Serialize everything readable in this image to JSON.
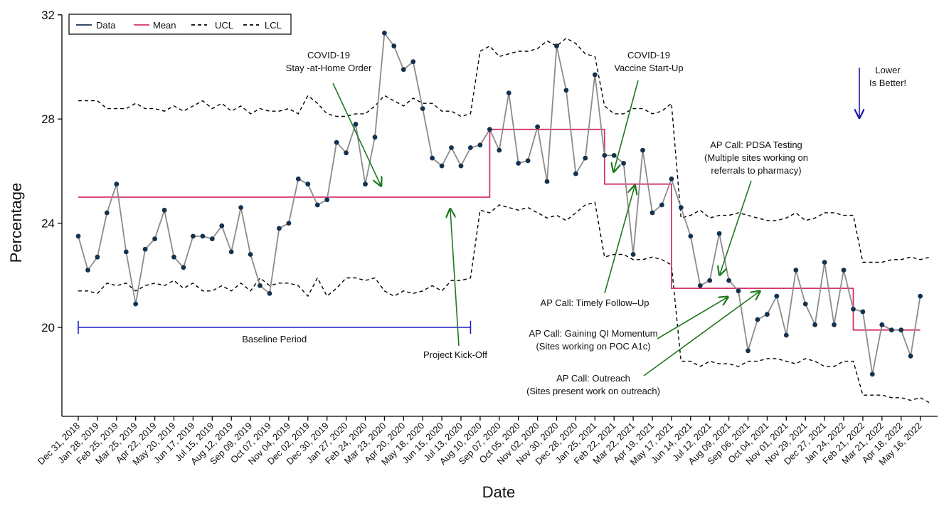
{
  "chart_data": {
    "type": "line",
    "xlabel": "Date",
    "ylabel": "Percentage",
    "ylim": [
      16,
      32
    ],
    "yticks": [
      20,
      24,
      28,
      32
    ],
    "x_tick_labels": [
      "Dec 31, 2018",
      "Jan 28, 2019",
      "Feb 25, 2019",
      "Mar 25, 2019",
      "Apr 22, 2019",
      "May 20, 2019",
      "Jun 17, 2019",
      "Jul 15, 2019",
      "Aug 12, 2019",
      "Sep 09, 2019",
      "Oct 07, 2019",
      "Nov 04, 2019",
      "Dec 02, 2019",
      "Dec 30, 2019",
      "Jan 27, 2020",
      "Feb 24, 2020",
      "Mar 23, 2020",
      "Apr 20, 2020",
      "May 18, 2020",
      "Jun 15, 2020",
      "Jul 13, 2020",
      "Aug 10, 2020",
      "Sep 07, 2020",
      "Oct 05, 2020",
      "Nov 02, 2020",
      "Nov 30, 2020",
      "Dec 28, 2020",
      "Jan 25, 2021",
      "Feb 22, 2021",
      "Mar 22, 2021",
      "Apr 19, 2021",
      "May 17, 2021",
      "Jun 14, 2021",
      "Jul 12, 2021",
      "Aug 09, 2021",
      "Sep 06, 2021",
      "Oct 04, 2021",
      "Nov 01, 2021",
      "Nov 29, 2021",
      "Dec 27, 2021",
      "Jan 24, 2022",
      "Feb 21, 2022",
      "Mar 21, 2022",
      "Apr 18, 2022",
      "May 16, 2022"
    ],
    "legend": {
      "position": "top-left",
      "items": [
        {
          "label": "Data",
          "color": "#14324f",
          "style": "solid"
        },
        {
          "label": "Mean",
          "color": "#d6336c",
          "style": "solid"
        },
        {
          "label": "UCL",
          "color": "#000000",
          "style": "dashed"
        },
        {
          "label": "LCL",
          "color": "#000000",
          "style": "dashed"
        }
      ]
    },
    "series": [
      {
        "name": "Data",
        "color": "#14324f",
        "line_color": "#8c8c8c",
        "values": [
          23.5,
          22.2,
          22.7,
          24.4,
          25.5,
          22.9,
          20.9,
          23.0,
          23.4,
          24.5,
          22.7,
          22.3,
          23.5,
          23.5,
          23.4,
          23.9,
          22.9,
          24.6,
          22.8,
          21.6,
          21.3,
          23.8,
          24.0,
          25.7,
          25.5,
          24.7,
          24.9,
          27.1,
          26.7,
          27.8,
          25.5,
          27.3,
          31.3,
          30.8,
          29.9,
          30.2,
          28.4,
          26.5,
          26.2,
          26.9,
          26.2,
          26.9,
          27.0,
          27.6,
          26.8,
          29.0,
          26.3,
          26.4,
          27.7,
          25.6,
          30.8,
          29.1,
          25.9,
          26.5,
          29.7,
          26.6,
          26.6,
          26.3,
          22.8,
          26.8,
          24.4,
          24.7,
          25.7,
          24.6,
          23.5,
          21.6,
          21.8,
          23.6,
          21.8,
          21.4,
          19.1,
          20.3,
          20.5,
          21.2,
          19.7,
          22.2,
          20.9,
          20.1,
          22.5,
          20.1,
          22.2,
          20.7,
          20.6,
          18.2,
          20.1,
          19.9,
          19.9,
          18.9,
          21.2
        ]
      },
      {
        "name": "Mean",
        "color": "#d6336c",
        "style": "step",
        "segments": [
          {
            "start": 0,
            "end": 43,
            "value": 25.0
          },
          {
            "start": 43,
            "end": 55,
            "value": 27.6
          },
          {
            "start": 55,
            "end": 62,
            "value": 25.5
          },
          {
            "start": 62,
            "end": 81,
            "value": 21.5
          },
          {
            "start": 81,
            "end": 88,
            "value": 19.9
          }
        ]
      },
      {
        "name": "UCL",
        "color": "#000000",
        "style": "dashed",
        "values": [
          28.7,
          28.7,
          28.7,
          28.4,
          28.4,
          28.4,
          28.6,
          28.4,
          28.4,
          28.3,
          28.5,
          28.3,
          28.5,
          28.7,
          28.4,
          28.6,
          28.3,
          28.5,
          28.2,
          28.4,
          28.3,
          28.3,
          28.4,
          28.2,
          28.9,
          28.6,
          28.2,
          28.1,
          28.1,
          28.2,
          28.2,
          28.5,
          28.9,
          28.7,
          28.5,
          28.8,
          28.6,
          28.6,
          28.3,
          28.3,
          28.1,
          28.2,
          30.6,
          30.8,
          30.4,
          30.5,
          30.6,
          30.6,
          30.7,
          31.0,
          30.8,
          31.1,
          30.9,
          30.5,
          30.4,
          28.5,
          28.2,
          28.2,
          28.4,
          28.4,
          28.2,
          28.3,
          28.6,
          24.2,
          24.3,
          24.5,
          24.2,
          24.3,
          24.3,
          24.4,
          24.3,
          24.2,
          24.1,
          24.1,
          24.2,
          24.4,
          24.1,
          24.2,
          24.4,
          24.4,
          24.3,
          24.3,
          22.5,
          22.5,
          22.5,
          22.6,
          22.6,
          22.7,
          22.6,
          22.7
        ]
      },
      {
        "name": "LCL",
        "color": "#000000",
        "style": "dashed",
        "values": [
          21.4,
          21.4,
          21.3,
          21.7,
          21.6,
          21.7,
          21.4,
          21.6,
          21.7,
          21.6,
          21.8,
          21.5,
          21.7,
          21.4,
          21.4,
          21.6,
          21.4,
          21.7,
          21.4,
          21.9,
          21.6,
          21.7,
          21.7,
          21.6,
          21.2,
          21.9,
          21.2,
          21.5,
          21.9,
          21.9,
          21.8,
          21.9,
          21.4,
          21.2,
          21.4,
          21.3,
          21.4,
          21.6,
          21.4,
          21.8,
          21.8,
          21.9,
          24.5,
          24.4,
          24.7,
          24.6,
          24.5,
          24.6,
          24.4,
          24.2,
          24.3,
          24.1,
          24.4,
          24.7,
          24.8,
          22.7,
          22.8,
          22.8,
          22.6,
          22.6,
          22.7,
          22.6,
          22.4,
          18.7,
          18.7,
          18.5,
          18.7,
          18.6,
          18.6,
          18.5,
          18.7,
          18.7,
          18.8,
          18.8,
          18.7,
          18.6,
          18.8,
          18.7,
          18.5,
          18.5,
          18.7,
          18.7,
          17.4,
          17.4,
          17.4,
          17.3,
          17.3,
          17.2,
          17.3,
          17.1
        ]
      }
    ],
    "baseline": {
      "label": "Baseline Period",
      "start": 0,
      "end": 41,
      "value": 20.0,
      "color": "#1f1fc8"
    },
    "annotations": [
      {
        "lines": [
          "COVID-19",
          "Stay -at-Home Order"
        ],
        "color": "#1e7a1e"
      },
      {
        "lines": [
          "Project Kick-Off"
        ],
        "color": "#1e7a1e"
      },
      {
        "lines": [
          "COVID-19",
          "Vaccine Start-Up"
        ],
        "color": "#1e7a1e"
      },
      {
        "lines": [
          "AP Call: Timely Follow–Up"
        ],
        "color": "#1e7a1e"
      },
      {
        "lines": [
          "AP Call: PDSA Testing",
          "(Multiple sites working on",
          "referrals to pharmacy)"
        ],
        "color": "#1e7a1e"
      },
      {
        "lines": [
          "AP Call: Gaining QI Momentum",
          "(Sites working on POC A1c)"
        ],
        "color": "#1e7a1e"
      },
      {
        "lines": [
          "AP Call: Outreach",
          "(Sites present work on outreach)"
        ],
        "color": "#1e7a1e"
      },
      {
        "lines": [
          "Lower",
          "Is Better!"
        ],
        "color": "#1a1aa8"
      }
    ]
  }
}
